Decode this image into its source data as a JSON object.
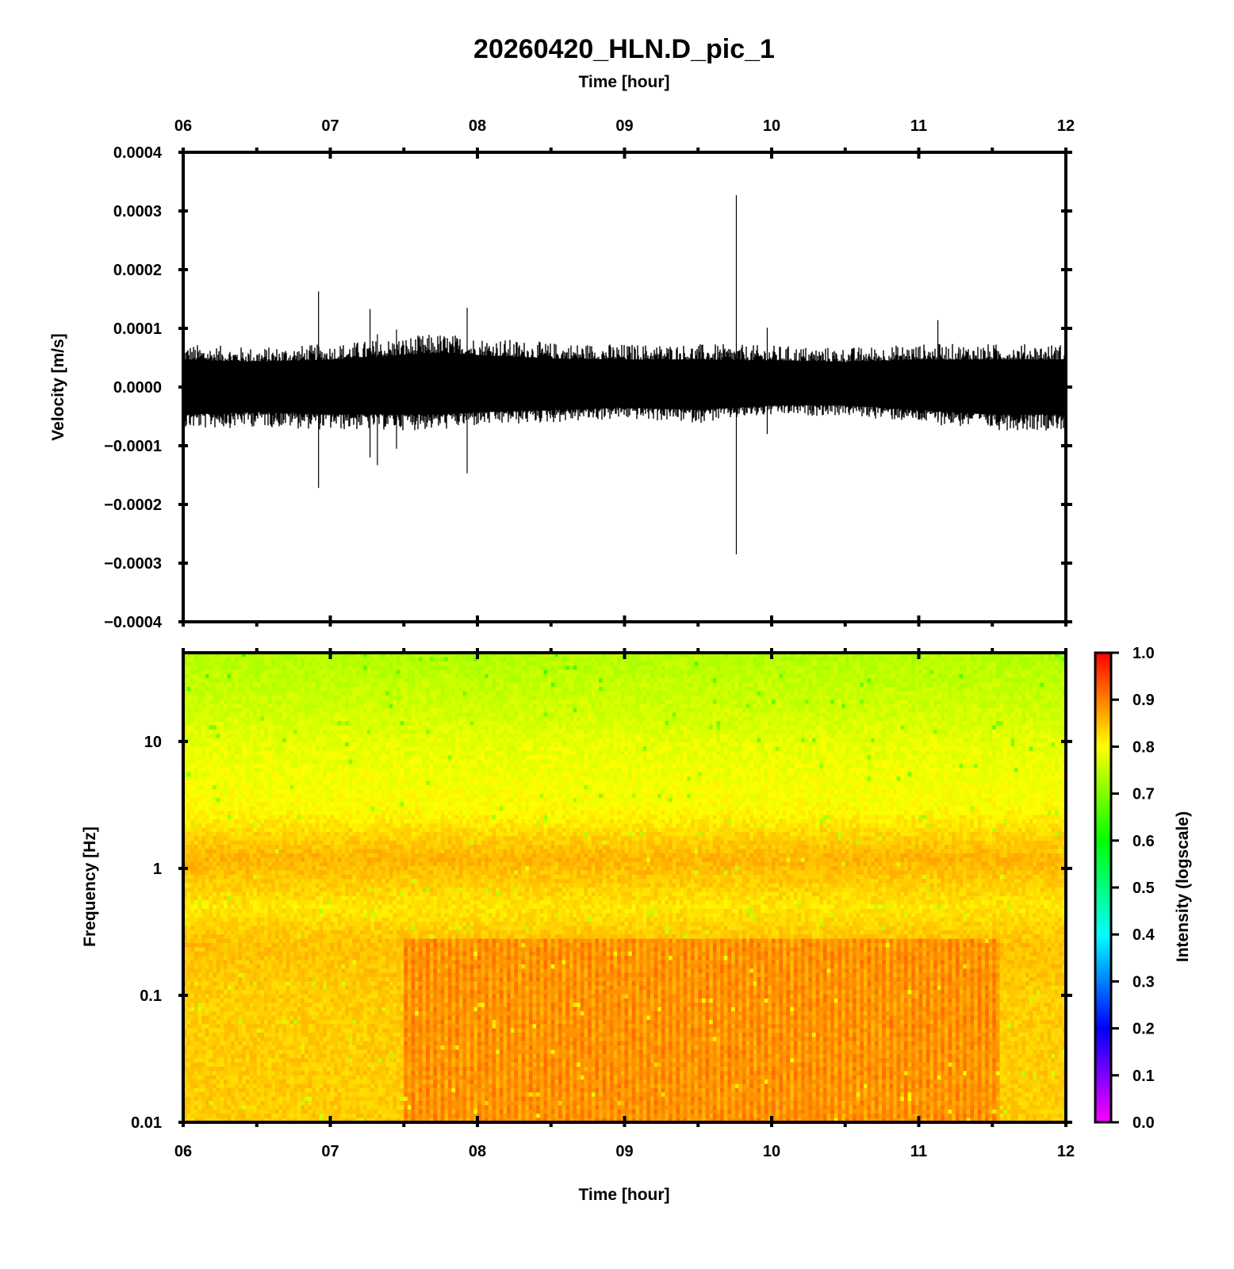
{
  "figure": {
    "title": "20260420_HLN.D_pic_1"
  },
  "chart_data": [
    {
      "type": "line",
      "panel": "waveform",
      "title": "20260420_HLN.D_pic_1",
      "xlabel": "Time [hour]",
      "ylabel": "Velocity [m/s]",
      "xlim": [
        6,
        12
      ],
      "ylim": [
        -0.0004,
        0.0004
      ],
      "x_ticks": [
        "06",
        "07",
        "08",
        "09",
        "10",
        "11",
        "12"
      ],
      "y_ticks": [
        "0.0004",
        "0.0003",
        "0.0002",
        "0.0001",
        "0.0000",
        "−0.0001",
        "−0.0002",
        "−0.0003",
        "−0.0004"
      ],
      "series": [
        {
          "color": "#000000",
          "envelope_x": [
            6.0,
            6.5,
            7.0,
            7.5,
            7.75,
            8.0,
            8.5,
            9.0,
            9.5,
            10.0,
            10.5,
            11.0,
            11.5,
            12.0
          ],
          "envelope_upper": [
            6e-05,
            5.5e-05,
            6e-05,
            7e-05,
            7.5e-05,
            7e-05,
            6.2e-05,
            6e-05,
            6e-05,
            5.8e-05,
            5.5e-05,
            6e-05,
            6e-05,
            6e-05
          ],
          "envelope_lower": [
            -6e-05,
            -5.5e-05,
            -6e-05,
            -6e-05,
            -6e-05,
            -5.5e-05,
            -5e-05,
            -4.5e-05,
            -5e-05,
            -4e-05,
            -4e-05,
            -5e-05,
            -6e-05,
            -6e-05
          ],
          "spikes": [
            {
              "x": 6.92,
              "max": 0.000163,
              "min": -0.000172
            },
            {
              "x": 7.27,
              "max": 0.000133,
              "min": -0.00012
            },
            {
              "x": 7.32,
              "max": 9e-05,
              "min": -0.000133
            },
            {
              "x": 7.45,
              "max": 9.8e-05,
              "min": -0.000105
            },
            {
              "x": 7.93,
              "max": 0.000135,
              "min": -0.000147
            },
            {
              "x": 9.76,
              "max": 0.000327,
              "min": -0.000285
            },
            {
              "x": 9.97,
              "max": 0.000101,
              "min": -8e-05
            },
            {
              "x": 11.13,
              "max": 0.000114,
              "min": -6e-05
            }
          ]
        }
      ]
    },
    {
      "type": "heatmap",
      "panel": "spectrogram",
      "xlabel": "Time [hour]",
      "ylabel": "Frequency [Hz]",
      "xlim": [
        6,
        12
      ],
      "ylim": [
        0.01,
        50
      ],
      "yscale": "log",
      "x_ticks": [
        "06",
        "07",
        "08",
        "09",
        "10",
        "11",
        "12"
      ],
      "y_ticks": [
        "10",
        "1",
        "0.1",
        "0.01"
      ],
      "colorbar": {
        "label": "Intensity (logscale)",
        "range": [
          0,
          1
        ],
        "ticks": [
          "1.0",
          "0.9",
          "0.8",
          "0.7",
          "0.6",
          "0.5",
          "0.4",
          "0.3",
          "0.2",
          "0.1",
          "0.0"
        ],
        "colormap": [
          "#ff00ff",
          "#7f00ff",
          "#0000ff",
          "#0080ff",
          "#00ffff",
          "#00ff80",
          "#00ff00",
          "#80ff00",
          "#ffff00",
          "#ff8000",
          "#ff0000"
        ]
      },
      "intensity_profile": {
        "frequency_hz": [
          0.01,
          0.1,
          0.25,
          0.5,
          1.2,
          3,
          10,
          20,
          50
        ],
        "intensity": [
          0.84,
          0.84,
          0.85,
          0.82,
          0.86,
          0.8,
          0.78,
          0.76,
          0.74
        ],
        "elevated_band_time": [
          7.5,
          11.55
        ],
        "elevated_band_below_hz": 0.28,
        "elevated_band_intensity": 0.88
      }
    }
  ]
}
